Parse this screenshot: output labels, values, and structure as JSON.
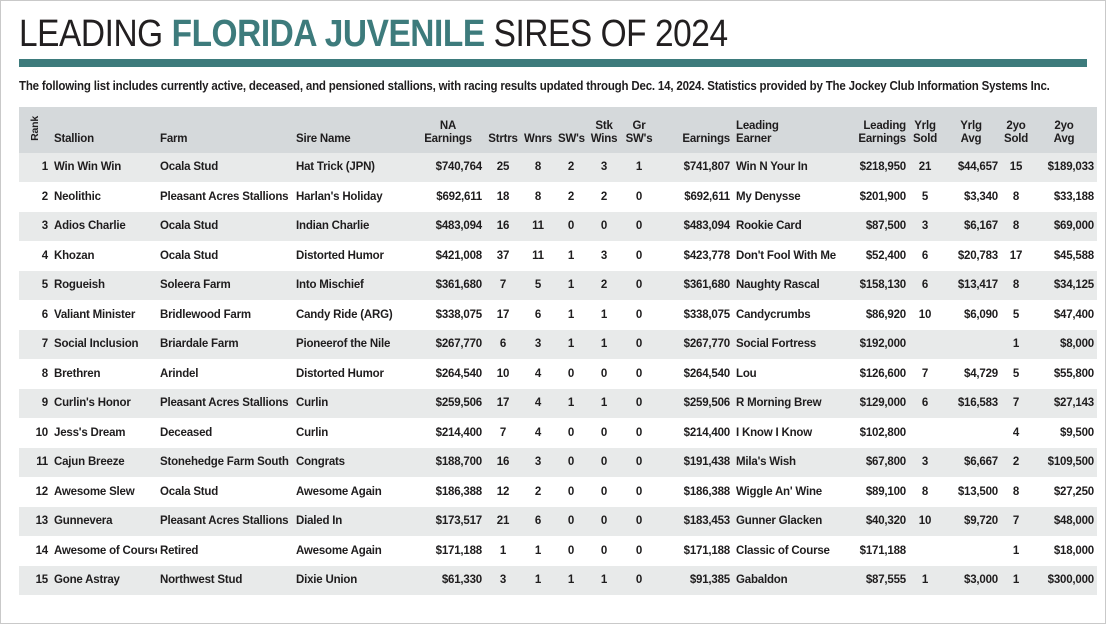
{
  "header": {
    "title_prefix": "LEADING ",
    "title_highlight": "FLORIDA JUVENILE",
    "title_suffix": " SIRES OF 2024",
    "accent_color": "#3d7b7c",
    "subtitle": "The following list includes currently active, deceased, and pensioned stallions, with racing results updated through Dec. 14, 2024. Statistics provided by The Jockey Club Information Systems Inc."
  },
  "table": {
    "columns": [
      {
        "key": "rank",
        "label": "Rank",
        "align": "right",
        "header_align": "center",
        "rotated": true
      },
      {
        "key": "stallion",
        "label": "Stallion",
        "align": "left"
      },
      {
        "key": "farm",
        "label": "Farm",
        "align": "left"
      },
      {
        "key": "sire_name",
        "label": "Sire Name",
        "align": "left"
      },
      {
        "key": "na_earnings",
        "label": "NA\nEarnings",
        "align": "right",
        "header_align": "center"
      },
      {
        "key": "strtrs",
        "label": "Strtrs",
        "align": "center"
      },
      {
        "key": "wnrs",
        "label": "Wnrs",
        "align": "center"
      },
      {
        "key": "sws",
        "label": "SW's",
        "align": "center"
      },
      {
        "key": "stk_wins",
        "label": "Stk\nWins",
        "align": "center"
      },
      {
        "key": "gr_sws",
        "label": "Gr\nSW's",
        "align": "center"
      },
      {
        "key": "earnings",
        "label": "Earnings",
        "align": "right"
      },
      {
        "key": "leading_earner",
        "label": "Leading\nEarner",
        "align": "left"
      },
      {
        "key": "leading_earnings",
        "label": "Leading\nEarnings",
        "align": "right"
      },
      {
        "key": "yrlg_sold",
        "label": "Yrlg\nSold",
        "align": "center"
      },
      {
        "key": "yrlg_avg",
        "label": "Yrlg\nAvg",
        "align": "right",
        "header_align": "center"
      },
      {
        "key": "two_yo_sold",
        "label": "2yo\nSold",
        "align": "center"
      },
      {
        "key": "two_yo_avg",
        "label": "2yo\nAvg",
        "align": "right",
        "header_align": "center"
      }
    ],
    "rows": [
      [
        "1",
        "Win Win Win",
        "Ocala Stud",
        "Hat Trick (JPN)",
        "$740,764",
        "25",
        "8",
        "2",
        "3",
        "1",
        "$741,807",
        "Win N Your In",
        "$218,950",
        "21",
        "$44,657",
        "15",
        "$189,033"
      ],
      [
        "2",
        "Neolithic",
        "Pleasant Acres Stallions",
        "Harlan's Holiday",
        "$692,611",
        "18",
        "8",
        "2",
        "2",
        "0",
        "$692,611",
        "My Denysse",
        "$201,900",
        "5",
        "$3,340",
        "8",
        "$33,188"
      ],
      [
        "3",
        "Adios Charlie",
        "Ocala Stud",
        "Indian Charlie",
        "$483,094",
        "16",
        "11",
        "0",
        "0",
        "0",
        "$483,094",
        "Rookie Card",
        "$87,500",
        "3",
        "$6,167",
        "8",
        "$69,000"
      ],
      [
        "4",
        "Khozan",
        "Ocala Stud",
        "Distorted Humor",
        "$421,008",
        "37",
        "11",
        "1",
        "3",
        "0",
        "$423,778",
        "Don't Fool With Me",
        "$52,400",
        "6",
        "$20,783",
        "17",
        "$45,588"
      ],
      [
        "5",
        "Rogueish",
        "Soleera Farm",
        "Into Mischief",
        "$361,680",
        "7",
        "5",
        "1",
        "2",
        "0",
        "$361,680",
        "Naughty Rascal",
        "$158,130",
        "6",
        "$13,417",
        "8",
        "$34,125"
      ],
      [
        "6",
        "Valiant Minister",
        "Bridlewood Farm",
        "Candy Ride (ARG)",
        "$338,075",
        "17",
        "6",
        "1",
        "1",
        "0",
        "$338,075",
        "Candycrumbs",
        "$86,920",
        "10",
        "$6,090",
        "5",
        "$47,400"
      ],
      [
        "7",
        "Social Inclusion",
        "Briardale Farm",
        "Pioneerof the Nile",
        "$267,770",
        "6",
        "3",
        "1",
        "1",
        "0",
        "$267,770",
        "Social Fortress",
        "$192,000",
        "",
        "",
        "1",
        "$8,000"
      ],
      [
        "8",
        "Brethren",
        "Arindel",
        "Distorted Humor",
        "$264,540",
        "10",
        "4",
        "0",
        "0",
        "0",
        "$264,540",
        "Lou",
        "$126,600",
        "7",
        "$4,729",
        "5",
        "$55,800"
      ],
      [
        "9",
        "Curlin's Honor",
        "Pleasant Acres Stallions",
        "Curlin",
        "$259,506",
        "17",
        "4",
        "1",
        "1",
        "0",
        "$259,506",
        "R Morning Brew",
        "$129,000",
        "6",
        "$16,583",
        "7",
        "$27,143"
      ],
      [
        "10",
        "Jess's Dream",
        "Deceased",
        "Curlin",
        "$214,400",
        "7",
        "4",
        "0",
        "0",
        "0",
        "$214,400",
        "I Know I Know",
        "$102,800",
        "",
        "",
        "4",
        "$9,500"
      ],
      [
        "11",
        "Cajun Breeze",
        "Stonehedge Farm South",
        "Congrats",
        "$188,700",
        "16",
        "3",
        "0",
        "0",
        "0",
        "$191,438",
        "Mila's Wish",
        "$67,800",
        "3",
        "$6,667",
        "2",
        "$109,500"
      ],
      [
        "12",
        "Awesome Slew",
        "Ocala Stud",
        "Awesome Again",
        "$186,388",
        "12",
        "2",
        "0",
        "0",
        "0",
        "$186,388",
        "Wiggle An' Wine",
        "$89,100",
        "8",
        "$13,500",
        "8",
        "$27,250"
      ],
      [
        "13",
        "Gunnevera",
        "Pleasant Acres Stallions",
        "Dialed In",
        "$173,517",
        "21",
        "6",
        "0",
        "0",
        "0",
        "$183,453",
        "Gunner Glacken",
        "$40,320",
        "10",
        "$9,720",
        "7",
        "$48,000"
      ],
      [
        "14",
        "Awesome of Course",
        "Retired",
        "Awesome Again",
        "$171,188",
        "1",
        "1",
        "0",
        "0",
        "0",
        "$171,188",
        "Classic of Course",
        "$171,188",
        "",
        "",
        "1",
        "$18,000"
      ],
      [
        "15",
        "Gone Astray",
        "Northwest Stud",
        "Dixie Union",
        "$61,330",
        "3",
        "1",
        "1",
        "1",
        "0",
        "$91,385",
        "Gabaldon",
        "$87,555",
        "1",
        "$3,000",
        "1",
        "$300,000"
      ]
    ]
  }
}
